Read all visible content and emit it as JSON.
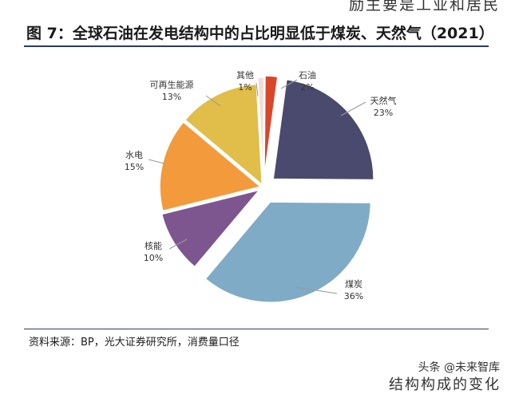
{
  "page": {
    "top_fragment": "励主要是工业和居民",
    "source": "资料来源：BP，光大证券研究所，消费量口径",
    "watermark": "头条 @未来智库",
    "bottom_fragment": "结构构成的变化"
  },
  "chart_data": {
    "type": "pie",
    "title": "图 7：全球石油在发电结构中的占比明显低于煤炭、天然气（2021）",
    "slices": [
      {
        "name": "石油",
        "value": 2,
        "label": "2%",
        "color": "#d9462a"
      },
      {
        "name": "天然气",
        "value": 23,
        "label": "23%",
        "color": "#4a4a6e"
      },
      {
        "name": "煤炭",
        "value": 36,
        "label": "36%",
        "color": "#7fabc6"
      },
      {
        "name": "核能",
        "value": 10,
        "label": "10%",
        "color": "#7d568f"
      },
      {
        "name": "水电",
        "value": 15,
        "label": "15%",
        "color": "#f39a3c"
      },
      {
        "name": "可再生能源",
        "value": 13,
        "label": "13%",
        "color": "#e1bd4a"
      },
      {
        "name": "其他",
        "value": 1,
        "label": "1%",
        "color": "#f3dcd5"
      }
    ]
  }
}
